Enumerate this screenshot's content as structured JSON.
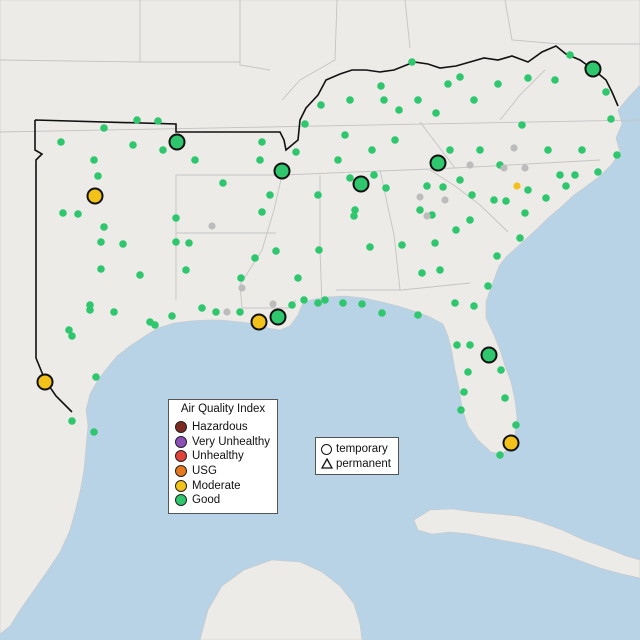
{
  "map": {
    "region": "Southeastern United States and Gulf of Mexico",
    "colors": {
      "water": "#b9d3e6",
      "land": "#ecebe7",
      "state_border": "#c4c4c4",
      "region_outline": "#111111"
    }
  },
  "aqi_legend": {
    "title": "Air Quality Index",
    "categories": [
      {
        "label": "Hazardous",
        "color": "#7e2a22"
      },
      {
        "label": "Very Unhealthy",
        "color": "#8c4fb8"
      },
      {
        "label": "Unhealthy",
        "color": "#e0433a"
      },
      {
        "label": "USG",
        "color": "#e57a1e"
      },
      {
        "label": "Moderate",
        "color": "#f2c21a"
      },
      {
        "label": "Good",
        "color": "#2ec76d"
      }
    ]
  },
  "monitor_type_legend": {
    "items": [
      {
        "label": "temporary",
        "icon": "circle-outline-icon"
      },
      {
        "label": "permanent",
        "icon": "triangle-outline-icon"
      }
    ]
  }
}
